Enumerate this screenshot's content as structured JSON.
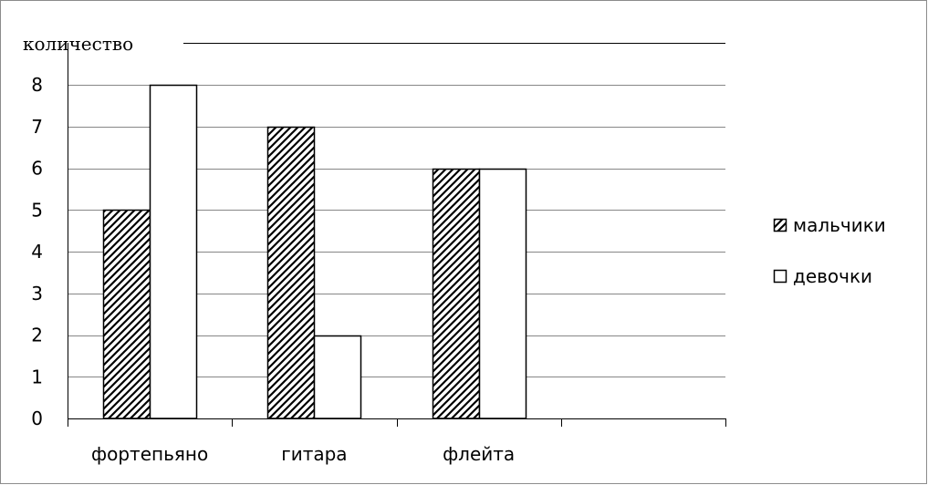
{
  "chart_data": {
    "type": "bar",
    "title": "",
    "xlabel": "",
    "ylabel": "количество",
    "categories": [
      "фортепьяно",
      "гитара",
      "флейта",
      ""
    ],
    "series": [
      {
        "name": "мальчики",
        "values": [
          5,
          7,
          6,
          null
        ],
        "fill": "hatch",
        "color": "#000000"
      },
      {
        "name": "девочки",
        "values": [
          8,
          2,
          6,
          null
        ],
        "fill": "solid",
        "color": "#ffffff"
      }
    ],
    "ylim": [
      0,
      8
    ],
    "yticks": [
      "0",
      "1",
      "2",
      "3",
      "4",
      "5",
      "6",
      "7",
      "8"
    ],
    "grid": true,
    "legend_position": "right"
  }
}
